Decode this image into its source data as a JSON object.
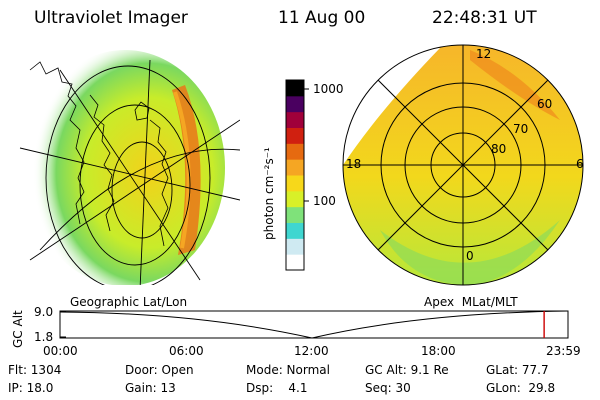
{
  "header": {
    "instrument": "Ultraviolet Imager",
    "date": "11 Aug 00",
    "time": "22:48:31 UT"
  },
  "colorbar": {
    "unit_label": "photon cm⁻²s⁻¹",
    "ticks": [
      "1000",
      "100"
    ],
    "colors": [
      "#ffffff",
      "#cfeaf2",
      "#3fd6d0",
      "#7fe27a",
      "#d8f028",
      "#f7d81a",
      "#f5a623",
      "#e66a10",
      "#d02010",
      "#a0003a",
      "#4a0060",
      "#000000"
    ]
  },
  "left_panel": {
    "label": "Geographic Lat/Lon"
  },
  "right_panel": {
    "label": "Apex  MLat/MLT",
    "mlt_labels": [
      "12",
      "18",
      "6",
      "0"
    ],
    "lat_labels": [
      "60",
      "70",
      "80"
    ]
  },
  "altitude_plot": {
    "axis_title": "GC Alt",
    "y_ticks": [
      "9.0",
      "1.8"
    ],
    "x_ticks": [
      "00:00",
      "06:00",
      "12:00",
      "18:00",
      "23:59"
    ],
    "current_time_fraction": 0.953,
    "marker_color": "#cc0000"
  },
  "info": {
    "flt": "Flt: 1304",
    "ip": "IP: 18.0",
    "door": "Door: Open",
    "gain": "Gain: 13",
    "mode": "Mode: Normal",
    "dsp": "Dsp:    4.1",
    "gcalt": "GC Alt: 9.1 Re",
    "seq": "Seq: 30",
    "glat": "GLat: 77.7",
    "glon": "GLon:  29.8"
  }
}
